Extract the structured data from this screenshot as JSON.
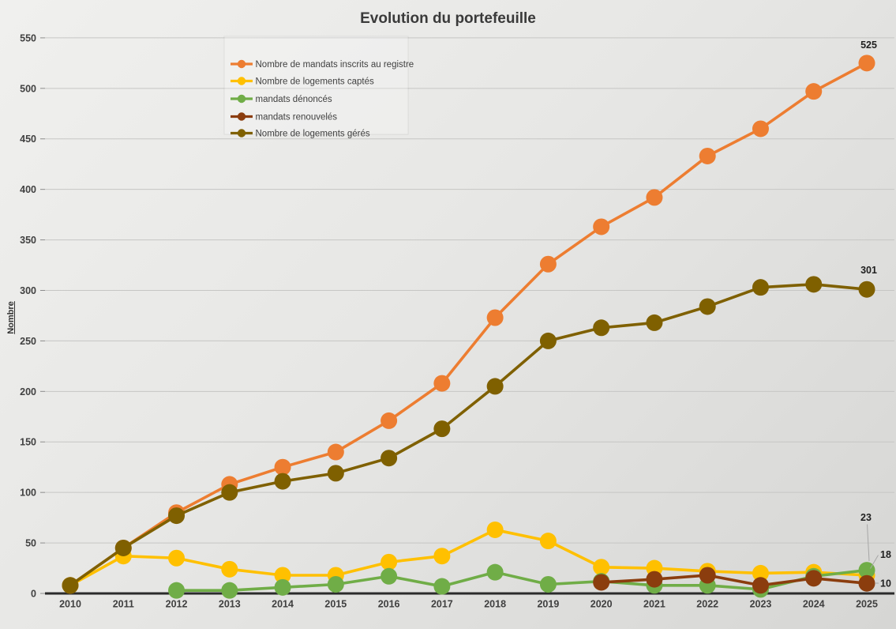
{
  "chart": {
    "title": "Evolution du portefeuille",
    "y_axis_title": "Nombre"
  },
  "chart_data": {
    "type": "line",
    "title": "Evolution du portefeuille",
    "xlabel": "",
    "ylabel": "Nombre",
    "ylim": [
      0,
      550
    ],
    "ytick_step": 50,
    "grid": true,
    "legend_position": "top-left-inside",
    "y_ticks": [
      0,
      50,
      100,
      150,
      200,
      250,
      300,
      350,
      400,
      450,
      500,
      550
    ],
    "categories": [
      "2010",
      "2011",
      "2012",
      "2013",
      "2014",
      "2015",
      "2016",
      "2017",
      "2018",
      "2019",
      "2020",
      "2021",
      "2022",
      "2023",
      "2024",
      "2025"
    ],
    "series": [
      {
        "key": "mandats-inscrits-au-registre",
        "name": "Nombre de mandats inscrits au registre",
        "color": "#ED7D31",
        "values": [
          8,
          45,
          80,
          108,
          125,
          140,
          171,
          208,
          273,
          326,
          363,
          392,
          433,
          460,
          497,
          525
        ]
      },
      {
        "key": "logements-captes",
        "name": "Nombre de logements captés",
        "color": "#FFC000",
        "values": [
          8,
          37,
          35,
          24,
          18,
          18,
          31,
          37,
          63,
          52,
          26,
          25,
          22,
          20,
          21,
          18
        ]
      },
      {
        "key": "mandats-denonces",
        "name": "mandats dénoncés",
        "color": "#70AD47",
        "values": [
          null,
          null,
          3,
          3,
          6,
          9,
          17,
          7,
          21,
          9,
          12,
          8,
          8,
          4,
          17,
          23
        ]
      },
      {
        "key": "mandats-renouveles",
        "name": "mandats renouvelés",
        "color": "#8B3D0E",
        "values": [
          null,
          null,
          null,
          null,
          null,
          null,
          null,
          null,
          null,
          null,
          11,
          14,
          18,
          8,
          15,
          10
        ]
      },
      {
        "key": "logements-geres",
        "name": "Nombre de logements gérés",
        "color": "#7F6000",
        "values": [
          8,
          45,
          77,
          100,
          111,
          119,
          134,
          163,
          205,
          250,
          263,
          268,
          284,
          303,
          306,
          301
        ]
      }
    ],
    "end_labels": [
      {
        "series_index": 0,
        "value_text": "525"
      },
      {
        "series_index": 4,
        "value_text": "301"
      },
      {
        "series_index": 2,
        "value_text": "23"
      },
      {
        "series_index": 1,
        "value_text": "18"
      },
      {
        "series_index": 3,
        "value_text": "10"
      }
    ]
  }
}
